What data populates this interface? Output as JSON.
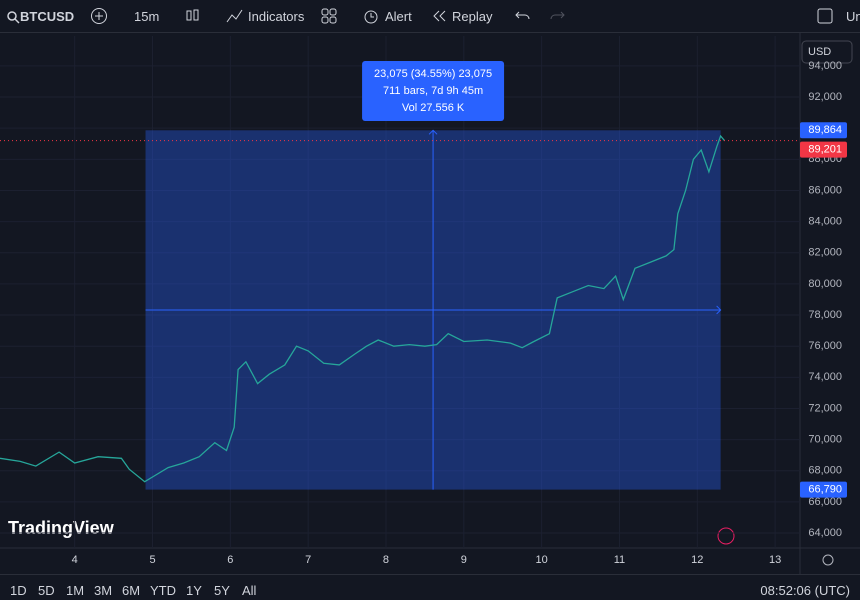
{
  "toolbar": {
    "symbol": "BTCUSD",
    "interval": "15m",
    "indicators": "Indicators",
    "alert": "Alert",
    "replay": "Replay",
    "cut": "Un"
  },
  "currency": "USD",
  "logo": "TradingView",
  "ranges": [
    "1D",
    "5D",
    "1M",
    "3M",
    "6M",
    "YTD",
    "1Y",
    "5Y",
    "All"
  ],
  "clock": "08:52:06 (UTC)",
  "chart_data": {
    "type": "line",
    "color": "#26a69a",
    "x": [
      3.04,
      3.3,
      3.5,
      3.8,
      4.0,
      4.3,
      4.6,
      4.7,
      4.9,
      5.0,
      5.2,
      5.4,
      5.6,
      5.8,
      5.95,
      6.05,
      6.1,
      6.2,
      6.35,
      6.5,
      6.7,
      6.85,
      7.0,
      7.2,
      7.4,
      7.6,
      7.75,
      7.9,
      8.1,
      8.3,
      8.5,
      8.65,
      8.8,
      9.0,
      9.3,
      9.6,
      9.75,
      9.9,
      10.1,
      10.2,
      10.4,
      10.6,
      10.8,
      10.95,
      11.05,
      11.2,
      11.4,
      11.6,
      11.7,
      11.75,
      11.85,
      11.95,
      12.05,
      12.15,
      12.25,
      12.3,
      12.35
    ],
    "values": [
      68800,
      68600,
      68300,
      69200,
      68500,
      68900,
      68800,
      68100,
      67300,
      67600,
      68200,
      68500,
      68900,
      69800,
      69300,
      70800,
      74500,
      75000,
      73600,
      74200,
      74800,
      76000,
      75700,
      74900,
      74800,
      75500,
      76000,
      76400,
      76000,
      76100,
      76000,
      76100,
      76800,
      76300,
      76400,
      76200,
      75900,
      76300,
      76800,
      79100,
      79500,
      79900,
      79700,
      80500,
      79000,
      81000,
      81400,
      81800,
      82200,
      84500,
      86000,
      88000,
      88600,
      87200,
      88800,
      89500,
      89201
    ],
    "xlim": [
      3.04,
      13.32
    ],
    "ylim": [
      63040,
      95920
    ],
    "xticks": [
      4,
      5,
      6,
      7,
      8,
      9,
      10,
      11,
      12,
      13
    ],
    "yticks": [
      {
        "value": 64000,
        "label": "64,000"
      },
      {
        "value": 66000,
        "label": "66,000"
      },
      {
        "value": 68000,
        "label": "68,000"
      },
      {
        "value": 70000,
        "label": "70,000"
      },
      {
        "value": 72000,
        "label": "72,000"
      },
      {
        "value": 74000,
        "label": "74,000"
      },
      {
        "value": 76000,
        "label": "76,000"
      },
      {
        "value": 78000,
        "label": "78,000"
      },
      {
        "value": 80000,
        "label": "80,000"
      },
      {
        "value": 82000,
        "label": "82,000"
      },
      {
        "value": 84000,
        "label": "84,000"
      },
      {
        "value": 86000,
        "label": "86,000"
      },
      {
        "value": 88000,
        "label": "88,000"
      },
      {
        "value": 90000,
        "label": "90,000"
      },
      {
        "value": 92000,
        "label": "92,000"
      },
      {
        "value": 94000,
        "label": "94,000"
      }
    ],
    "last_price": {
      "value": 89201,
      "label": "89,201",
      "color": "#f23645"
    },
    "measure": {
      "x": [
        4.91,
        12.3
      ],
      "color": "#2962ff",
      "top": {
        "value": 89864,
        "label": "89,864"
      },
      "bottom": {
        "value": 66790,
        "label": "66,790"
      },
      "info": [
        "23,075 (34.55%) 23,075",
        "711 bars, 7d 9h 45m",
        "Vol 27.556 K"
      ]
    }
  }
}
